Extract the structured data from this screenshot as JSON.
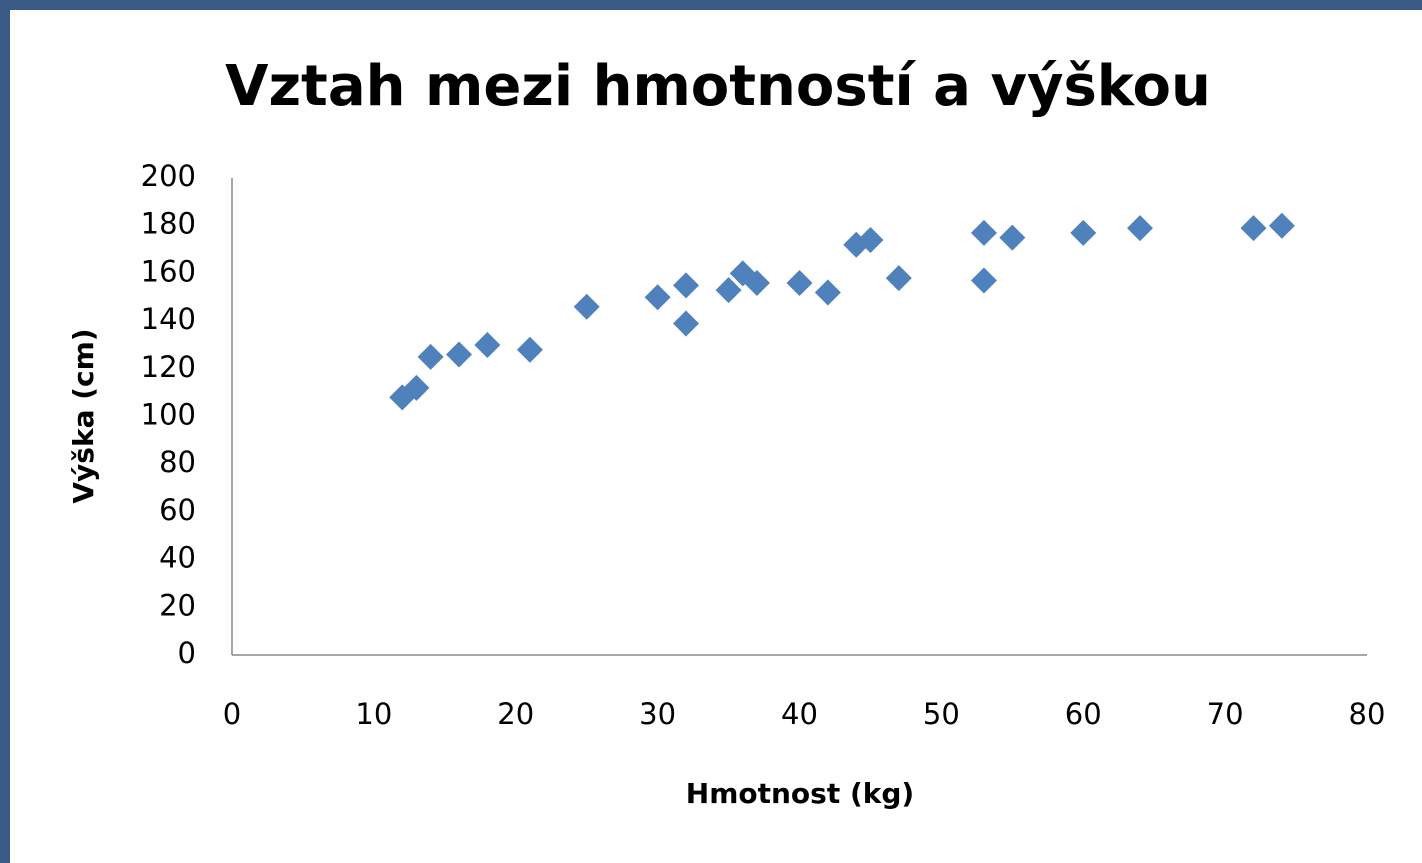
{
  "chart_data": {
    "type": "scatter",
    "title": "Vztah mezi hmotností a výškou",
    "x_label": "Hmotnost (kg)",
    "y_label": "Výška (cm)",
    "series": [
      {
        "name": "Výška",
        "color": "#4f81bd",
        "x": [
          12,
          13,
          14,
          16,
          18,
          21,
          25,
          30,
          32,
          32,
          35,
          36,
          37,
          40,
          42,
          44,
          45,
          47,
          53,
          53,
          55,
          60,
          64,
          72,
          74
        ],
        "values": [
          108,
          112,
          125,
          126,
          130,
          128,
          146,
          150,
          155,
          139,
          153,
          160,
          156,
          156,
          152,
          172,
          174,
          158,
          177,
          157,
          175,
          177,
          179,
          179,
          180
        ]
      }
    ],
    "xlim": [
      0,
      80
    ],
    "xticks": [
      0,
      10,
      20,
      30,
      40,
      50,
      60,
      70,
      80
    ],
    "ylim": [
      0,
      200
    ],
    "yticks": [
      0,
      20,
      40,
      60,
      80,
      100,
      120,
      140,
      160,
      180,
      200
    ],
    "grid": false
  }
}
